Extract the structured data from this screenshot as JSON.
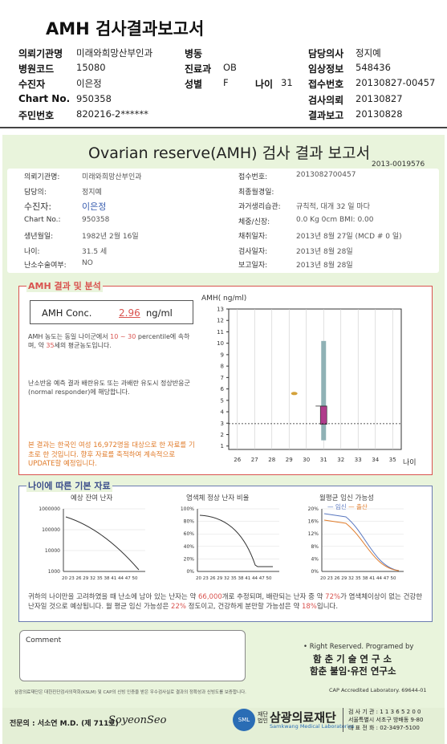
{
  "header": {
    "title": "AMH 검사결과보고서",
    "rows": [
      {
        "l1": "의뢰기관명",
        "v1": "미래와희망산부인과",
        "l2": "병동",
        "v2": "",
        "l3": "",
        "v3": "",
        "l4": "담당의사",
        "v4": "정지예"
      },
      {
        "l1": "병원코드",
        "v1": "15080",
        "l2": "진료과",
        "v2": "OB",
        "l3": "",
        "v3": "",
        "l4": "임상정보",
        "v4": "548436"
      },
      {
        "l1": "수진자",
        "v1": "이은정",
        "l2": "성별",
        "v2": "F",
        "l3": "나이",
        "v3": "31",
        "l4": "접수번호",
        "v4": "20130827-00457"
      },
      {
        "l1": "Chart No.",
        "v1": "950358",
        "l2": "",
        "v2": "",
        "l3": "",
        "v3": "",
        "l4": "검사의뢰",
        "v4": "20130827"
      },
      {
        "l1": "주민번호",
        "v1": "820216-2******",
        "l2": "",
        "v2": "",
        "l3": "",
        "v3": "",
        "l4": "결과보고",
        "v4": "20130828"
      }
    ]
  },
  "report": {
    "title": "Ovarian reserve(AMH) 검사 결과 보고서",
    "doc_no": "2013-0019576",
    "left_info": [
      {
        "label": "의뢰기관명:",
        "value": "미래와희망산부인과"
      },
      {
        "label": "담당의:",
        "value": "정지예"
      },
      {
        "label": "수진자:",
        "value": "이은정"
      },
      {
        "label": "Chart No.:",
        "value": "950358"
      },
      {
        "label": "생년월일:",
        "value": "1982년 2월 16일"
      },
      {
        "label": "나이:",
        "value": "31.5 세"
      },
      {
        "label": "난소수술여부:",
        "value": "NO"
      }
    ],
    "right_info": [
      {
        "label": "접수번호:",
        "value": "2013082700457"
      },
      {
        "label": "최종월경일:",
        "value": ""
      },
      {
        "label": "과거생리습관:",
        "value": "규칙적, 대개    32 일 마다"
      },
      {
        "label": "체중/신장:",
        "value": "0.0 Kg      0cm    BMI:   0.00"
      },
      {
        "label": "채취일자:",
        "value": "2013년 8월 27일    (MCD #  0 일)"
      },
      {
        "label": "검사일자:",
        "value": "2013년 8월 28일"
      },
      {
        "label": "보고일자:",
        "value": "2013년 8월 28일"
      }
    ]
  },
  "amh_section": {
    "label": "AMH 결과 및 분석",
    "conc_label": "AMH Conc.",
    "conc_value": "2.96",
    "conc_unit": "ng/ml",
    "text1_a": "AMH 농도는 동일 나이군에서",
    "text1_range": "10 ~ 30",
    "text1_b": "percentile에 속하며, 약",
    "text1_age": "35",
    "text1_c": "세의 평균농도입니다.",
    "text2": "난소반응 예측 결과 배란유도 또는 과배란 유도시 정상반응군 (normal responder)에 해당합니다.",
    "text3": "본 결과는 한국인 여성 16,972명을 대상으로 한 자료를 기초로 한 것입니다. 향후 자료를 축적하여 계속적으로 UPDATE할 예정입니다."
  },
  "chart_data": {
    "type": "box",
    "ylabel": "AMH( ng/ml)",
    "xlabel": "나이",
    "x_ticks": [
      26,
      27,
      28,
      29,
      30,
      31,
      32,
      33,
      34,
      35
    ],
    "y_ticks": [
      1,
      2,
      3,
      4,
      5,
      6,
      7,
      8,
      9,
      10,
      11,
      12,
      13
    ],
    "ylim": [
      1,
      13
    ],
    "xlim": [
      25.5,
      35.5
    ],
    "patient_age": 31,
    "patient_amh": 2.96,
    "whisker_low": 1.5,
    "whisker_high": 10.2,
    "box_low": 2.9,
    "box_high": 4.5,
    "outlier": {
      "x": 29.3,
      "y": 5.6
    },
    "colors": {
      "whisker": "#8fb1b5",
      "box": "#b03c8c",
      "outlier": "#d4a23a",
      "ref": "#222"
    }
  },
  "age_section": {
    "label": "나이에 따른 기본 자료",
    "chart1_title": "예상 잔여 난자",
    "chart1_y": [
      "1000000",
      "100000",
      "10000",
      "1000"
    ],
    "chart2_title": "염색체 정상 난자 비율",
    "chart2_y": [
      "100%",
      "80%",
      "60%",
      "40%",
      "20%",
      "0%"
    ],
    "chart3_title": "월평균 임신 가능성",
    "chart3_legend": [
      "임신",
      "출산"
    ],
    "chart3_y": [
      "20%",
      "16%",
      "12%",
      "8%",
      "4%",
      "0%"
    ],
    "x_ticks": "20 23 26 29 32 35 38 41 44 47 50",
    "summary_a": "귀하의 나이만을 고려하였을 때 난소에 남아 있는 난자는 약",
    "summary_eggs": "66,000",
    "summary_b": "개로 추정되며, 배란되는 난자 중 약",
    "summary_pct": "72%",
    "summary_c": "가 염색체이상이 없는 건강한 난자일 것으로 예상됩니다. 월 평균 임신 가능성은",
    "summary_preg": "22%",
    "summary_d": "정도이고, 건강하게 분만할 가능성은 약",
    "summary_birth": "18%",
    "summary_e": "입니다."
  },
  "comment": {
    "label": "Comment",
    "value": ""
  },
  "credits": {
    "rights": "• Right Reserved. Programed by",
    "org1": "함 춘 기 술 연 구 소",
    "org2": "함춘 불임·유전 연구소",
    "cap": "CAP Accredited Laboratory. 69644-01",
    "cert": "삼광의료재단은 대한진단검사의학회(KSLM) 및 CAP의 신빙 인증을 받은 우수검사실로 결과의 정확성과 신빙도를 보증합니다.",
    "doctor": "전문의 : 서소연 M.D. (제 711호)",
    "signature": "SoyeonSeo",
    "foundation": "삼광의료재단",
    "foundation_en": "Samkwang Medical Laboratories",
    "contact1": "검 사 기 관 : 1 1 3 6 5 2 0 0",
    "contact2": "서울특별시 서초구 방배동 9-80",
    "contact3": "대 표 전 화 : 02-3497-5100",
    "logo_text": "재단 법인"
  }
}
